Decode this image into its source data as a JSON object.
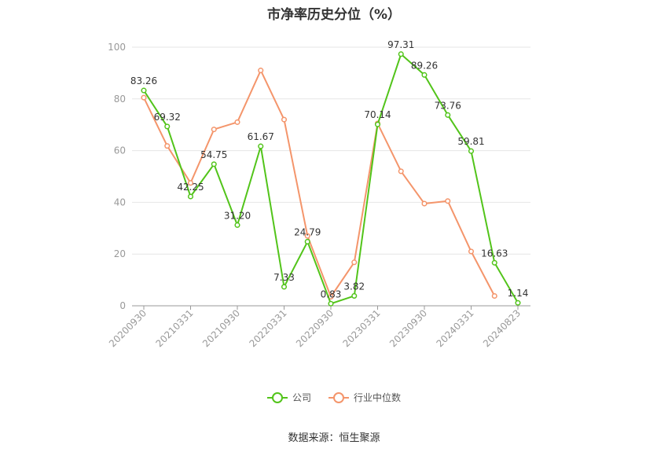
{
  "chart_data": {
    "type": "line",
    "title": "市净率历史分位（%）",
    "x": [
      "2020-09-30",
      "2020-12-31",
      "2021-03-31",
      "2021-06-30",
      "2021-09-30",
      "2021-12-31",
      "2022-03-31",
      "2022-06-30",
      "2022-09-30",
      "2022-12-31",
      "2023-03-31",
      "2023-06-30",
      "2023-09-30",
      "2023-12-31",
      "2024-03-31",
      "2024-06-30",
      "2024-08-23"
    ],
    "tick_labels": [
      "20200930",
      "20210331",
      "20210930",
      "20220331",
      "20220930",
      "20230331",
      "20230930",
      "20240331",
      "20240823"
    ],
    "tick_positions": [
      0,
      2,
      4,
      6,
      8,
      10,
      12,
      14,
      16
    ],
    "ylim": [
      0,
      100
    ],
    "yticks": [
      0,
      20,
      40,
      60,
      80,
      100
    ],
    "grid": true,
    "legend_position": "bottom",
    "series": [
      {
        "name": "公司",
        "color": "#52c41a",
        "values": [
          83.26,
          69.32,
          42.25,
          54.75,
          31.2,
          61.67,
          7.33,
          24.79,
          0.83,
          3.82,
          70.14,
          97.31,
          89.26,
          73.76,
          59.81,
          16.63,
          1.14
        ],
        "data_labels": [
          "83.26",
          "69.32",
          "42.25",
          "54.75",
          "31.20",
          "61.67",
          "7.33",
          "24.79",
          "0.83",
          "3.82",
          "70.14",
          "97.31",
          "89.26",
          "73.76",
          "59.81",
          "16.63",
          "1.14"
        ]
      },
      {
        "name": "行业中位数",
        "color": "#f4956b",
        "values": [
          80.5,
          61.8,
          47.5,
          68.2,
          71.0,
          91.0,
          72.0,
          27.0,
          3.5,
          16.8,
          70.5,
          52.0,
          39.5,
          40.5,
          21.0,
          3.8,
          null
        ]
      }
    ]
  },
  "source_text": "数据来源：恒生聚源"
}
